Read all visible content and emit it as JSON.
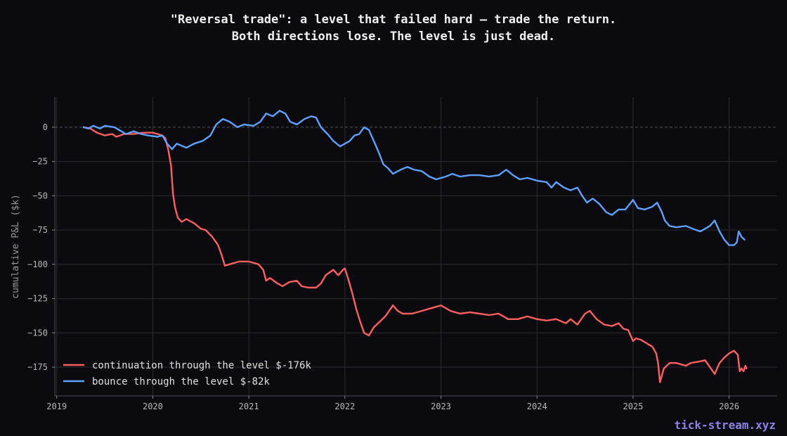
{
  "title_line1": "\"Reversal trade\": a level that failed hard — trade the return.",
  "title_line2": "Both directions lose. The level is just dead.",
  "brand": "tick-stream.xyz",
  "colors": {
    "background": "#0b0b0f",
    "grid": "#2a2a30",
    "continuation": "#ff5f5f",
    "bounce": "#5ea0ff",
    "brand": "#8b83e6"
  },
  "chart_data": {
    "type": "line",
    "title": "\"Reversal trade\": a level that failed hard — trade the return. Both directions lose. The level is just dead.",
    "xlabel": "",
    "ylabel": "cumulative P&L ($k)",
    "xlim": [
      2018.98,
      2026.5
    ],
    "ylim": [
      -196,
      22
    ],
    "x_ticks": [
      2019,
      2020,
      2021,
      2022,
      2023,
      2024,
      2025,
      2026
    ],
    "x_tick_labels": [
      "2019",
      "2020",
      "2021",
      "2022",
      "2023",
      "2024",
      "2025",
      "2026"
    ],
    "y_ticks": [
      0,
      -25,
      -50,
      -75,
      -100,
      -125,
      -150,
      -175
    ],
    "y_tick_labels": [
      "0",
      "−25",
      "−50",
      "−75",
      "−100",
      "−125",
      "−150",
      "−175"
    ],
    "grid": true,
    "zero_line": "dashed",
    "legend_position": "bottom-left",
    "series": [
      {
        "name": "continuation through the level",
        "final_label": "$-176k",
        "color": "#ff5f5f",
        "points": [
          [
            2019.28,
            0
          ],
          [
            2019.35,
            -1
          ],
          [
            2019.42,
            -4
          ],
          [
            2019.5,
            -6
          ],
          [
            2019.58,
            -5
          ],
          [
            2019.62,
            -7
          ],
          [
            2019.7,
            -5
          ],
          [
            2019.8,
            -5
          ],
          [
            2019.9,
            -4
          ],
          [
            2020.0,
            -4
          ],
          [
            2020.05,
            -5
          ],
          [
            2020.1,
            -6
          ],
          [
            2020.13,
            -8
          ],
          [
            2020.16,
            -16
          ],
          [
            2020.19,
            -28
          ],
          [
            2020.21,
            -48
          ],
          [
            2020.23,
            -58
          ],
          [
            2020.26,
            -66
          ],
          [
            2020.3,
            -69
          ],
          [
            2020.35,
            -67
          ],
          [
            2020.43,
            -70
          ],
          [
            2020.5,
            -74
          ],
          [
            2020.55,
            -75
          ],
          [
            2020.62,
            -80
          ],
          [
            2020.68,
            -86
          ],
          [
            2020.72,
            -94
          ],
          [
            2020.75,
            -101
          ],
          [
            2020.8,
            -100
          ],
          [
            2020.9,
            -98
          ],
          [
            2021.0,
            -98
          ],
          [
            2021.1,
            -100
          ],
          [
            2021.15,
            -104
          ],
          [
            2021.18,
            -112
          ],
          [
            2021.22,
            -110
          ],
          [
            2021.3,
            -114
          ],
          [
            2021.35,
            -116
          ],
          [
            2021.42,
            -113
          ],
          [
            2021.5,
            -112
          ],
          [
            2021.55,
            -116
          ],
          [
            2021.62,
            -117
          ],
          [
            2021.7,
            -117
          ],
          [
            2021.75,
            -114
          ],
          [
            2021.8,
            -108
          ],
          [
            2021.88,
            -104
          ],
          [
            2021.93,
            -108
          ],
          [
            2021.98,
            -104
          ],
          [
            2022.0,
            -103
          ],
          [
            2022.04,
            -112
          ],
          [
            2022.08,
            -122
          ],
          [
            2022.12,
            -133
          ],
          [
            2022.16,
            -142
          ],
          [
            2022.2,
            -150
          ],
          [
            2022.25,
            -152
          ],
          [
            2022.3,
            -146
          ],
          [
            2022.36,
            -142
          ],
          [
            2022.42,
            -138
          ],
          [
            2022.5,
            -130
          ],
          [
            2022.55,
            -134
          ],
          [
            2022.6,
            -136
          ],
          [
            2022.7,
            -136
          ],
          [
            2022.8,
            -134
          ],
          [
            2022.9,
            -132
          ],
          [
            2023.0,
            -130
          ],
          [
            2023.1,
            -134
          ],
          [
            2023.2,
            -136
          ],
          [
            2023.3,
            -135
          ],
          [
            2023.4,
            -136
          ],
          [
            2023.5,
            -137
          ],
          [
            2023.6,
            -136
          ],
          [
            2023.7,
            -140
          ],
          [
            2023.8,
            -140
          ],
          [
            2023.9,
            -138
          ],
          [
            2024.0,
            -140
          ],
          [
            2024.1,
            -141
          ],
          [
            2024.2,
            -140
          ],
          [
            2024.3,
            -143
          ],
          [
            2024.35,
            -140
          ],
          [
            2024.42,
            -144
          ],
          [
            2024.5,
            -136
          ],
          [
            2024.55,
            -134
          ],
          [
            2024.62,
            -140
          ],
          [
            2024.7,
            -144
          ],
          [
            2024.78,
            -145
          ],
          [
            2024.85,
            -143
          ],
          [
            2024.9,
            -147
          ],
          [
            2024.95,
            -148
          ],
          [
            2025.0,
            -156
          ],
          [
            2025.03,
            -154
          ],
          [
            2025.08,
            -155
          ],
          [
            2025.15,
            -158
          ],
          [
            2025.2,
            -160
          ],
          [
            2025.24,
            -165
          ],
          [
            2025.26,
            -172
          ],
          [
            2025.28,
            -186
          ],
          [
            2025.32,
            -176
          ],
          [
            2025.38,
            -172
          ],
          [
            2025.45,
            -172
          ],
          [
            2025.55,
            -174
          ],
          [
            2025.6,
            -172
          ],
          [
            2025.68,
            -171
          ],
          [
            2025.75,
            -170
          ],
          [
            2025.8,
            -175
          ],
          [
            2025.85,
            -180
          ],
          [
            2025.9,
            -172
          ],
          [
            2025.95,
            -168
          ],
          [
            2026.0,
            -165
          ],
          [
            2026.05,
            -163
          ],
          [
            2026.09,
            -166
          ],
          [
            2026.11,
            -178
          ],
          [
            2026.13,
            -176
          ],
          [
            2026.15,
            -178
          ],
          [
            2026.17,
            -174
          ],
          [
            2026.18,
            -176
          ]
        ]
      },
      {
        "name": "bounce through the level",
        "final_label": "$-82k",
        "color": "#5ea0ff",
        "points": [
          [
            2019.28,
            0
          ],
          [
            2019.33,
            -1
          ],
          [
            2019.38,
            1
          ],
          [
            2019.45,
            -1
          ],
          [
            2019.5,
            1
          ],
          [
            2019.6,
            0
          ],
          [
            2019.65,
            -2
          ],
          [
            2019.72,
            -5
          ],
          [
            2019.8,
            -3
          ],
          [
            2019.88,
            -5
          ],
          [
            2019.95,
            -6
          ],
          [
            2020.05,
            -7
          ],
          [
            2020.1,
            -6
          ],
          [
            2020.15,
            -12
          ],
          [
            2020.2,
            -16
          ],
          [
            2020.25,
            -12
          ],
          [
            2020.35,
            -15
          ],
          [
            2020.43,
            -12
          ],
          [
            2020.52,
            -10
          ],
          [
            2020.6,
            -6
          ],
          [
            2020.66,
            2
          ],
          [
            2020.73,
            6
          ],
          [
            2020.8,
            4
          ],
          [
            2020.88,
            0
          ],
          [
            2020.95,
            2
          ],
          [
            2021.05,
            1
          ],
          [
            2021.12,
            4
          ],
          [
            2021.18,
            10
          ],
          [
            2021.25,
            8
          ],
          [
            2021.32,
            12
          ],
          [
            2021.38,
            10
          ],
          [
            2021.43,
            4
          ],
          [
            2021.5,
            2
          ],
          [
            2021.58,
            6
          ],
          [
            2021.65,
            8
          ],
          [
            2021.7,
            7
          ],
          [
            2021.75,
            0
          ],
          [
            2021.82,
            -5
          ],
          [
            2021.88,
            -10
          ],
          [
            2021.95,
            -14
          ],
          [
            2022.0,
            -12
          ],
          [
            2022.05,
            -10
          ],
          [
            2022.1,
            -6
          ],
          [
            2022.15,
            -5
          ],
          [
            2022.2,
            0
          ],
          [
            2022.25,
            -2
          ],
          [
            2022.3,
            -10
          ],
          [
            2022.35,
            -18
          ],
          [
            2022.4,
            -27
          ],
          [
            2022.45,
            -30
          ],
          [
            2022.5,
            -34
          ],
          [
            2022.58,
            -31
          ],
          [
            2022.65,
            -29
          ],
          [
            2022.72,
            -31
          ],
          [
            2022.8,
            -32
          ],
          [
            2022.88,
            -36
          ],
          [
            2022.95,
            -38
          ],
          [
            2023.05,
            -36
          ],
          [
            2023.12,
            -34
          ],
          [
            2023.2,
            -36
          ],
          [
            2023.3,
            -35
          ],
          [
            2023.4,
            -35
          ],
          [
            2023.5,
            -36
          ],
          [
            2023.6,
            -35
          ],
          [
            2023.68,
            -31
          ],
          [
            2023.75,
            -35
          ],
          [
            2023.82,
            -38
          ],
          [
            2023.9,
            -37
          ],
          [
            2024.0,
            -39
          ],
          [
            2024.1,
            -40
          ],
          [
            2024.15,
            -44
          ],
          [
            2024.2,
            -40
          ],
          [
            2024.28,
            -44
          ],
          [
            2024.35,
            -46
          ],
          [
            2024.42,
            -44
          ],
          [
            2024.47,
            -50
          ],
          [
            2024.52,
            -55
          ],
          [
            2024.58,
            -52
          ],
          [
            2024.65,
            -56
          ],
          [
            2024.72,
            -62
          ],
          [
            2024.78,
            -64
          ],
          [
            2024.85,
            -60
          ],
          [
            2024.92,
            -60
          ],
          [
            2025.0,
            -53
          ],
          [
            2025.05,
            -59
          ],
          [
            2025.12,
            -60
          ],
          [
            2025.2,
            -58
          ],
          [
            2025.25,
            -55
          ],
          [
            2025.3,
            -62
          ],
          [
            2025.33,
            -68
          ],
          [
            2025.38,
            -72
          ],
          [
            2025.45,
            -73
          ],
          [
            2025.55,
            -72
          ],
          [
            2025.62,
            -74
          ],
          [
            2025.7,
            -76
          ],
          [
            2025.75,
            -74
          ],
          [
            2025.8,
            -72
          ],
          [
            2025.85,
            -68
          ],
          [
            2025.9,
            -76
          ],
          [
            2025.95,
            -82
          ],
          [
            2026.0,
            -86
          ],
          [
            2026.05,
            -86
          ],
          [
            2026.08,
            -84
          ],
          [
            2026.1,
            -76
          ],
          [
            2026.13,
            -80
          ],
          [
            2026.16,
            -82
          ]
        ]
      }
    ]
  }
}
